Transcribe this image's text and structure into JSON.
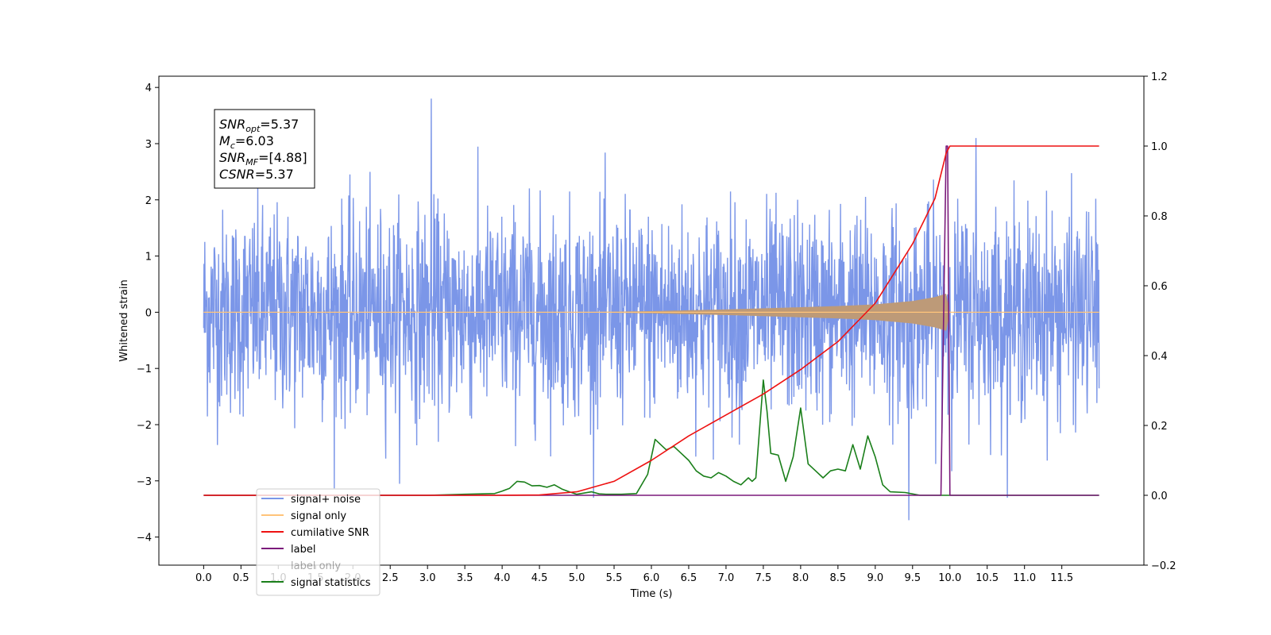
{
  "chart_data": {
    "type": "line",
    "xlabel": "Time (s)",
    "ylabel": "Whitened strain",
    "xlim": [
      -0.6,
      12.6
    ],
    "ylim": [
      -4.5,
      4.2
    ],
    "y2lim": [
      -0.2,
      1.2
    ],
    "x_ticks": [
      "0.0",
      "0.5",
      "1.0",
      "1.5",
      "2.0",
      "2.5",
      "3.0",
      "3.5",
      "4.0",
      "4.5",
      "5.0",
      "5.5",
      "6.0",
      "6.5",
      "7.0",
      "7.5",
      "8.0",
      "8.5",
      "9.0",
      "9.5",
      "10.0",
      "10.5",
      "11.0",
      "11.5"
    ],
    "y_ticks": [
      "4",
      "3",
      "2",
      "1",
      "0",
      "−1",
      "−2",
      "−3",
      "−4"
    ],
    "y2_ticks": [
      "1.2",
      "1.0",
      "0.8",
      "0.6",
      "0.4",
      "0.2",
      "0.0",
      "−0.2"
    ],
    "annotation": {
      "lines": [
        {
          "pre": "SNR",
          "sub": "opt",
          "post": "=5.37"
        },
        {
          "pre": "M",
          "sub": "c",
          "post": "=6.03"
        },
        {
          "pre": "SNR",
          "sub": "MF",
          "post": "=[4.88]"
        },
        {
          "pre": "CSNR",
          "sub": "",
          "post": "=5.37"
        }
      ]
    },
    "legend": {
      "position": "lower-left",
      "entries": [
        "signal+ noise",
        "signal only",
        "cumilative SNR",
        "label",
        "label only",
        "signal statistics"
      ]
    },
    "colors": {
      "noise": "#7b96e8",
      "signal": "#ffc47a",
      "signal_overlap": "#bd9a78",
      "cumsnr": "#ee1111",
      "label": "#7b1a7b",
      "stats": "#1a7f1a"
    },
    "series": [
      {
        "name": "signal+ noise",
        "axis": "left",
        "x_range": [
          0.0,
          12.0
        ],
        "approx_range": [
          -3.7,
          3.8
        ],
        "notable_peaks": [
          [
            3.05,
            3.8
          ],
          [
            10.35,
            3.1
          ],
          [
            9.45,
            -3.7
          ]
        ]
      },
      {
        "name": "signal only",
        "axis": "left",
        "envelope": {
          "x": [
            0.0,
            5.0,
            6.0,
            7.0,
            8.0,
            8.5,
            9.0,
            9.5,
            9.8,
            9.95,
            10.0,
            12.0
          ],
          "amp": [
            0.0,
            0.0,
            0.02,
            0.05,
            0.09,
            0.11,
            0.14,
            0.2,
            0.27,
            0.33,
            0.0,
            0.0
          ]
        }
      },
      {
        "name": "cumilative SNR",
        "axis": "right",
        "x": [
          0.0,
          4.0,
          4.5,
          5.0,
          5.5,
          6.0,
          6.5,
          7.0,
          7.5,
          8.0,
          8.5,
          9.0,
          9.5,
          9.8,
          9.95,
          10.0,
          12.0
        ],
        "y": [
          0.0,
          0.0,
          0.001,
          0.01,
          0.04,
          0.1,
          0.17,
          0.23,
          0.29,
          0.36,
          0.44,
          0.55,
          0.72,
          0.85,
          0.98,
          1.0,
          1.0
        ]
      },
      {
        "name": "label",
        "axis": "right",
        "x": [
          0.0,
          9.88,
          9.95,
          9.97,
          10.0,
          12.0
        ],
        "y": [
          0.0,
          0.0,
          1.0,
          1.0,
          0.0,
          0.0
        ]
      },
      {
        "name": "signal statistics",
        "axis": "right",
        "x": [
          0.0,
          3.0,
          3.5,
          3.9,
          4.0,
          4.1,
          4.2,
          4.3,
          4.4,
          4.5,
          4.6,
          4.7,
          4.8,
          4.9,
          5.0,
          5.2,
          5.3,
          5.4,
          5.6,
          5.8,
          5.95,
          6.05,
          6.2,
          6.3,
          6.4,
          6.5,
          6.6,
          6.7,
          6.8,
          6.9,
          7.0,
          7.1,
          7.2,
          7.3,
          7.35,
          7.4,
          7.5,
          7.55,
          7.6,
          7.7,
          7.8,
          7.9,
          8.0,
          8.1,
          8.2,
          8.3,
          8.4,
          8.5,
          8.6,
          8.7,
          8.8,
          8.9,
          9.0,
          9.1,
          9.2,
          9.4,
          9.6,
          12.0
        ],
        "y": [
          0.0,
          0.0,
          0.003,
          0.005,
          0.012,
          0.02,
          0.04,
          0.038,
          0.027,
          0.028,
          0.023,
          0.03,
          0.018,
          0.01,
          0.003,
          0.01,
          0.004,
          0.003,
          0.003,
          0.005,
          0.06,
          0.16,
          0.13,
          0.14,
          0.12,
          0.1,
          0.07,
          0.055,
          0.05,
          0.065,
          0.055,
          0.04,
          0.03,
          0.05,
          0.04,
          0.05,
          0.33,
          0.24,
          0.12,
          0.115,
          0.04,
          0.11,
          0.25,
          0.09,
          0.07,
          0.05,
          0.07,
          0.075,
          0.07,
          0.145,
          0.075,
          0.17,
          0.11,
          0.03,
          0.01,
          0.008,
          0.0,
          0.0
        ]
      }
    ]
  }
}
